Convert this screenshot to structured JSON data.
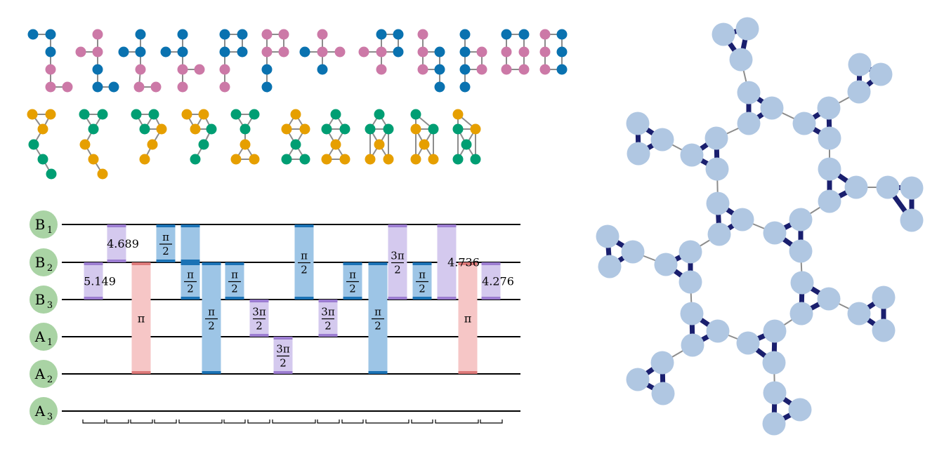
{
  "colors": {
    "blue": "#0a72b0",
    "pink": "#cc79a7",
    "orange": "#e69f00",
    "green": "#009e73",
    "edge": "#8c8c8c",
    "qubit_fill": "#a9d3a4",
    "gate_blue": "#9dc5e6",
    "gate_blue_cap": "#1b72b5",
    "gate_purple": "#d4c9ee",
    "gate_purple_cap": "#9c7dd1",
    "gate_red": "#f6c6c6",
    "gate_red_cap": "#de7a7a",
    "lattice_node": "#b0c7e2",
    "lattice_strong": "#1a1f6e",
    "lattice_weak": "#8c8c8c"
  },
  "circuit": {
    "qubits": [
      {
        "base": "B",
        "sub": "1"
      },
      {
        "base": "B",
        "sub": "2"
      },
      {
        "base": "B",
        "sub": "3"
      },
      {
        "base": "A",
        "sub": "1"
      },
      {
        "base": "A",
        "sub": "2"
      },
      {
        "base": "A",
        "sub": "3"
      }
    ],
    "gates": [
      {
        "from": 1,
        "to": 2,
        "color": "purple",
        "label": "5.149"
      },
      {
        "from": 0,
        "to": 1,
        "color": "purple",
        "label": "4.689"
      },
      {
        "from": 1,
        "to": 4,
        "color": "red",
        "label": "π"
      },
      {
        "from": 0,
        "to": 1,
        "color": "blue",
        "label": "π/2"
      },
      {
        "from": 0,
        "to": 1,
        "color": "blue",
        "label": ""
      },
      {
        "from": 1,
        "to": 2,
        "color": "blue",
        "label": "π/2"
      },
      {
        "from": 1,
        "to": 4,
        "color": "blue",
        "label": "π/2"
      },
      {
        "from": 1,
        "to": 2,
        "color": "blue",
        "label": "π/2"
      },
      {
        "from": 2,
        "to": 3,
        "color": "purple",
        "label": "3π/2"
      },
      {
        "from": 3,
        "to": 4,
        "color": "purple",
        "label": "3π/2"
      },
      {
        "from": 0,
        "to": 2,
        "color": "blue",
        "label": "π/2"
      },
      {
        "from": 2,
        "to": 3,
        "color": "purple",
        "label": "3π/2"
      },
      {
        "from": 1,
        "to": 2,
        "color": "blue",
        "label": "π/2"
      },
      {
        "from": 1,
        "to": 4,
        "color": "blue",
        "label": "π/2"
      },
      {
        "from": 0,
        "to": 2,
        "color": "purple",
        "label": "3π/2"
      },
      {
        "from": 1,
        "to": 2,
        "color": "blue",
        "label": "π/2"
      },
      {
        "from": 0,
        "to": 2,
        "color": "purple",
        "label": "4.736"
      },
      {
        "from": 1,
        "to": 4,
        "color": "red",
        "label": "π"
      },
      {
        "from": 1,
        "to": 2,
        "color": "purple",
        "label": "4.276"
      }
    ]
  }
}
